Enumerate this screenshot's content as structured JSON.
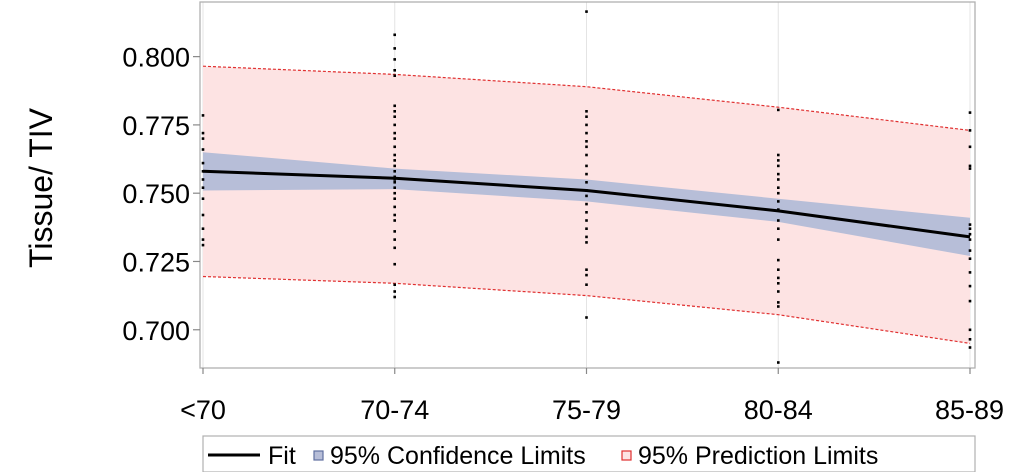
{
  "chart_data": {
    "type": "line",
    "title": "",
    "xlabel": "",
    "ylabel": "Tissue/ TIV",
    "categories": [
      "<70",
      "70-74",
      "75-79",
      "80-84",
      "85-89"
    ],
    "ylim": [
      0.686,
      0.82
    ],
    "yticks": [
      "0.700",
      "0.725",
      "0.750",
      "0.775",
      "0.800"
    ],
    "ytick_values": [
      0.7,
      0.725,
      0.75,
      0.775,
      0.8
    ],
    "grid": true,
    "legend_position": "bottom",
    "series": [
      {
        "name": "Fit",
        "kind": "line",
        "color": "#000000",
        "values": [
          0.758,
          0.7555,
          0.751,
          0.7435,
          0.734
        ]
      },
      {
        "name": "95% Confidence Limits",
        "kind": "band",
        "color": "#b7bed8",
        "lower": [
          0.751,
          0.7515,
          0.747,
          0.7395,
          0.727
        ],
        "upper": [
          0.765,
          0.759,
          0.755,
          0.748,
          0.741
        ]
      },
      {
        "name": "95% Prediction Limits",
        "kind": "band",
        "color": "#fde3e3",
        "edge_color": "#e03030",
        "lower": [
          0.7195,
          0.717,
          0.7125,
          0.7055,
          0.695
        ],
        "upper": [
          0.7965,
          0.7935,
          0.789,
          0.7815,
          0.773
        ]
      }
    ],
    "scatter": [
      {
        "category": "<70",
        "y": [
          0.7785,
          0.772,
          0.77,
          0.766,
          0.761,
          0.758,
          0.755,
          0.752,
          0.748,
          0.742,
          0.737,
          0.733,
          0.731
        ]
      },
      {
        "category": "70-74",
        "y": [
          0.808,
          0.803,
          0.799,
          0.795,
          0.793,
          0.782,
          0.78,
          0.778,
          0.775,
          0.772,
          0.77,
          0.767,
          0.764,
          0.762,
          0.76,
          0.758,
          0.756,
          0.755,
          0.754,
          0.752,
          0.75,
          0.748,
          0.745,
          0.742,
          0.74,
          0.736,
          0.733,
          0.73,
          0.724,
          0.7165,
          0.714,
          0.712
        ]
      },
      {
        "category": "75-79",
        "y": [
          0.8165,
          0.78,
          0.778,
          0.775,
          0.772,
          0.769,
          0.767,
          0.764,
          0.76,
          0.757,
          0.754,
          0.751,
          0.749,
          0.746,
          0.743,
          0.74,
          0.737,
          0.734,
          0.732,
          0.722,
          0.72,
          0.7165,
          0.7045
        ]
      },
      {
        "category": "80-84",
        "y": [
          0.7805,
          0.764,
          0.762,
          0.76,
          0.757,
          0.755,
          0.752,
          0.75,
          0.747,
          0.744,
          0.74,
          0.737,
          0.733,
          0.7255,
          0.722,
          0.719,
          0.717,
          0.714,
          0.71,
          0.7085,
          0.688
        ]
      },
      {
        "category": "85-89",
        "y": [
          0.7795,
          0.773,
          0.767,
          0.76,
          0.759,
          0.7385,
          0.737,
          0.735,
          0.733,
          0.729,
          0.726,
          0.721,
          0.716,
          0.7105,
          0.7,
          0.6965,
          0.6935
        ]
      }
    ]
  }
}
